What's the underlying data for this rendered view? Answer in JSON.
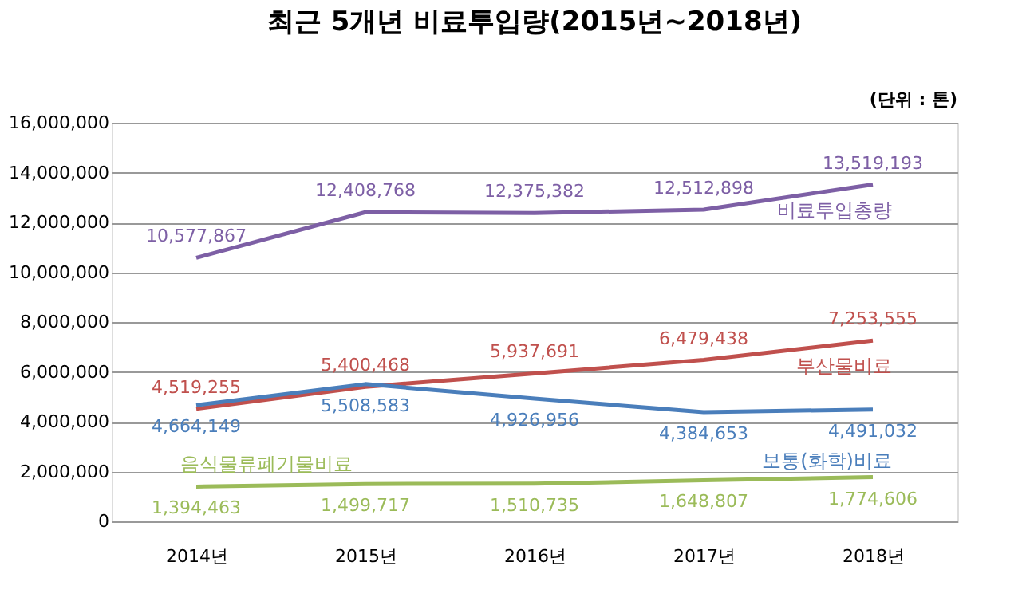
{
  "chart_data": {
    "type": "line",
    "title": "최근 5개년 비료투입량(2015년~2018년)",
    "annotations": [
      "(단위 : 톤)"
    ],
    "categories": [
      "2014년",
      "2015년",
      "2016년",
      "2017년",
      "2018년"
    ],
    "series": [
      {
        "name": "비료투입총량",
        "color": "#7d5fa5",
        "values": [
          10577867,
          12408768,
          12375382,
          12512898,
          13519193
        ],
        "value_labels": [
          "10,577,867",
          "12,408,768",
          "12,375,382",
          "12,512,898",
          "13,519,193"
        ]
      },
      {
        "name": "부산물비료",
        "color": "#c0504d",
        "values": [
          4519255,
          5400468,
          5937691,
          6479438,
          7253555
        ],
        "value_labels": [
          "4,519,255",
          "5,400,468",
          "5,937,691",
          "6,479,438",
          "7,253,555"
        ]
      },
      {
        "name": "보통(화학)비료",
        "color": "#4a7ebb",
        "values": [
          4664149,
          5508583,
          4926956,
          4384653,
          4491032
        ],
        "value_labels": [
          "4,664,149",
          "5,508,583",
          "4,926,956",
          "4,384,653",
          "4,491,032"
        ]
      },
      {
        "name": "음식물류폐기물비료",
        "color": "#9bbb59",
        "values": [
          1394463,
          1499717,
          1510735,
          1648807,
          1774606
        ],
        "value_labels": [
          "1,394,463",
          "1,499,717",
          "1,510,735",
          "1,648,807",
          "1,774,606"
        ]
      }
    ],
    "ylim": [
      0,
      16000000
    ],
    "yticks": [
      0,
      {
        "value": 2000000,
        "label": "2,000,000"
      },
      {
        "value": 4000000,
        "label": "4,000,000"
      },
      {
        "value": 6000000,
        "label": "6,000,000"
      },
      {
        "value": 8000000,
        "label": "8,000,000"
      },
      {
        "value": 10000000,
        "label": "10,000,000"
      },
      {
        "value": 12000000,
        "label": "12,000,000"
      },
      {
        "value": 14000000,
        "label": "14,000,000"
      },
      {
        "value": 16000000,
        "label": "16,000,000"
      }
    ],
    "grid": "y",
    "legend": false,
    "marker": "none",
    "line_style": "solid"
  }
}
